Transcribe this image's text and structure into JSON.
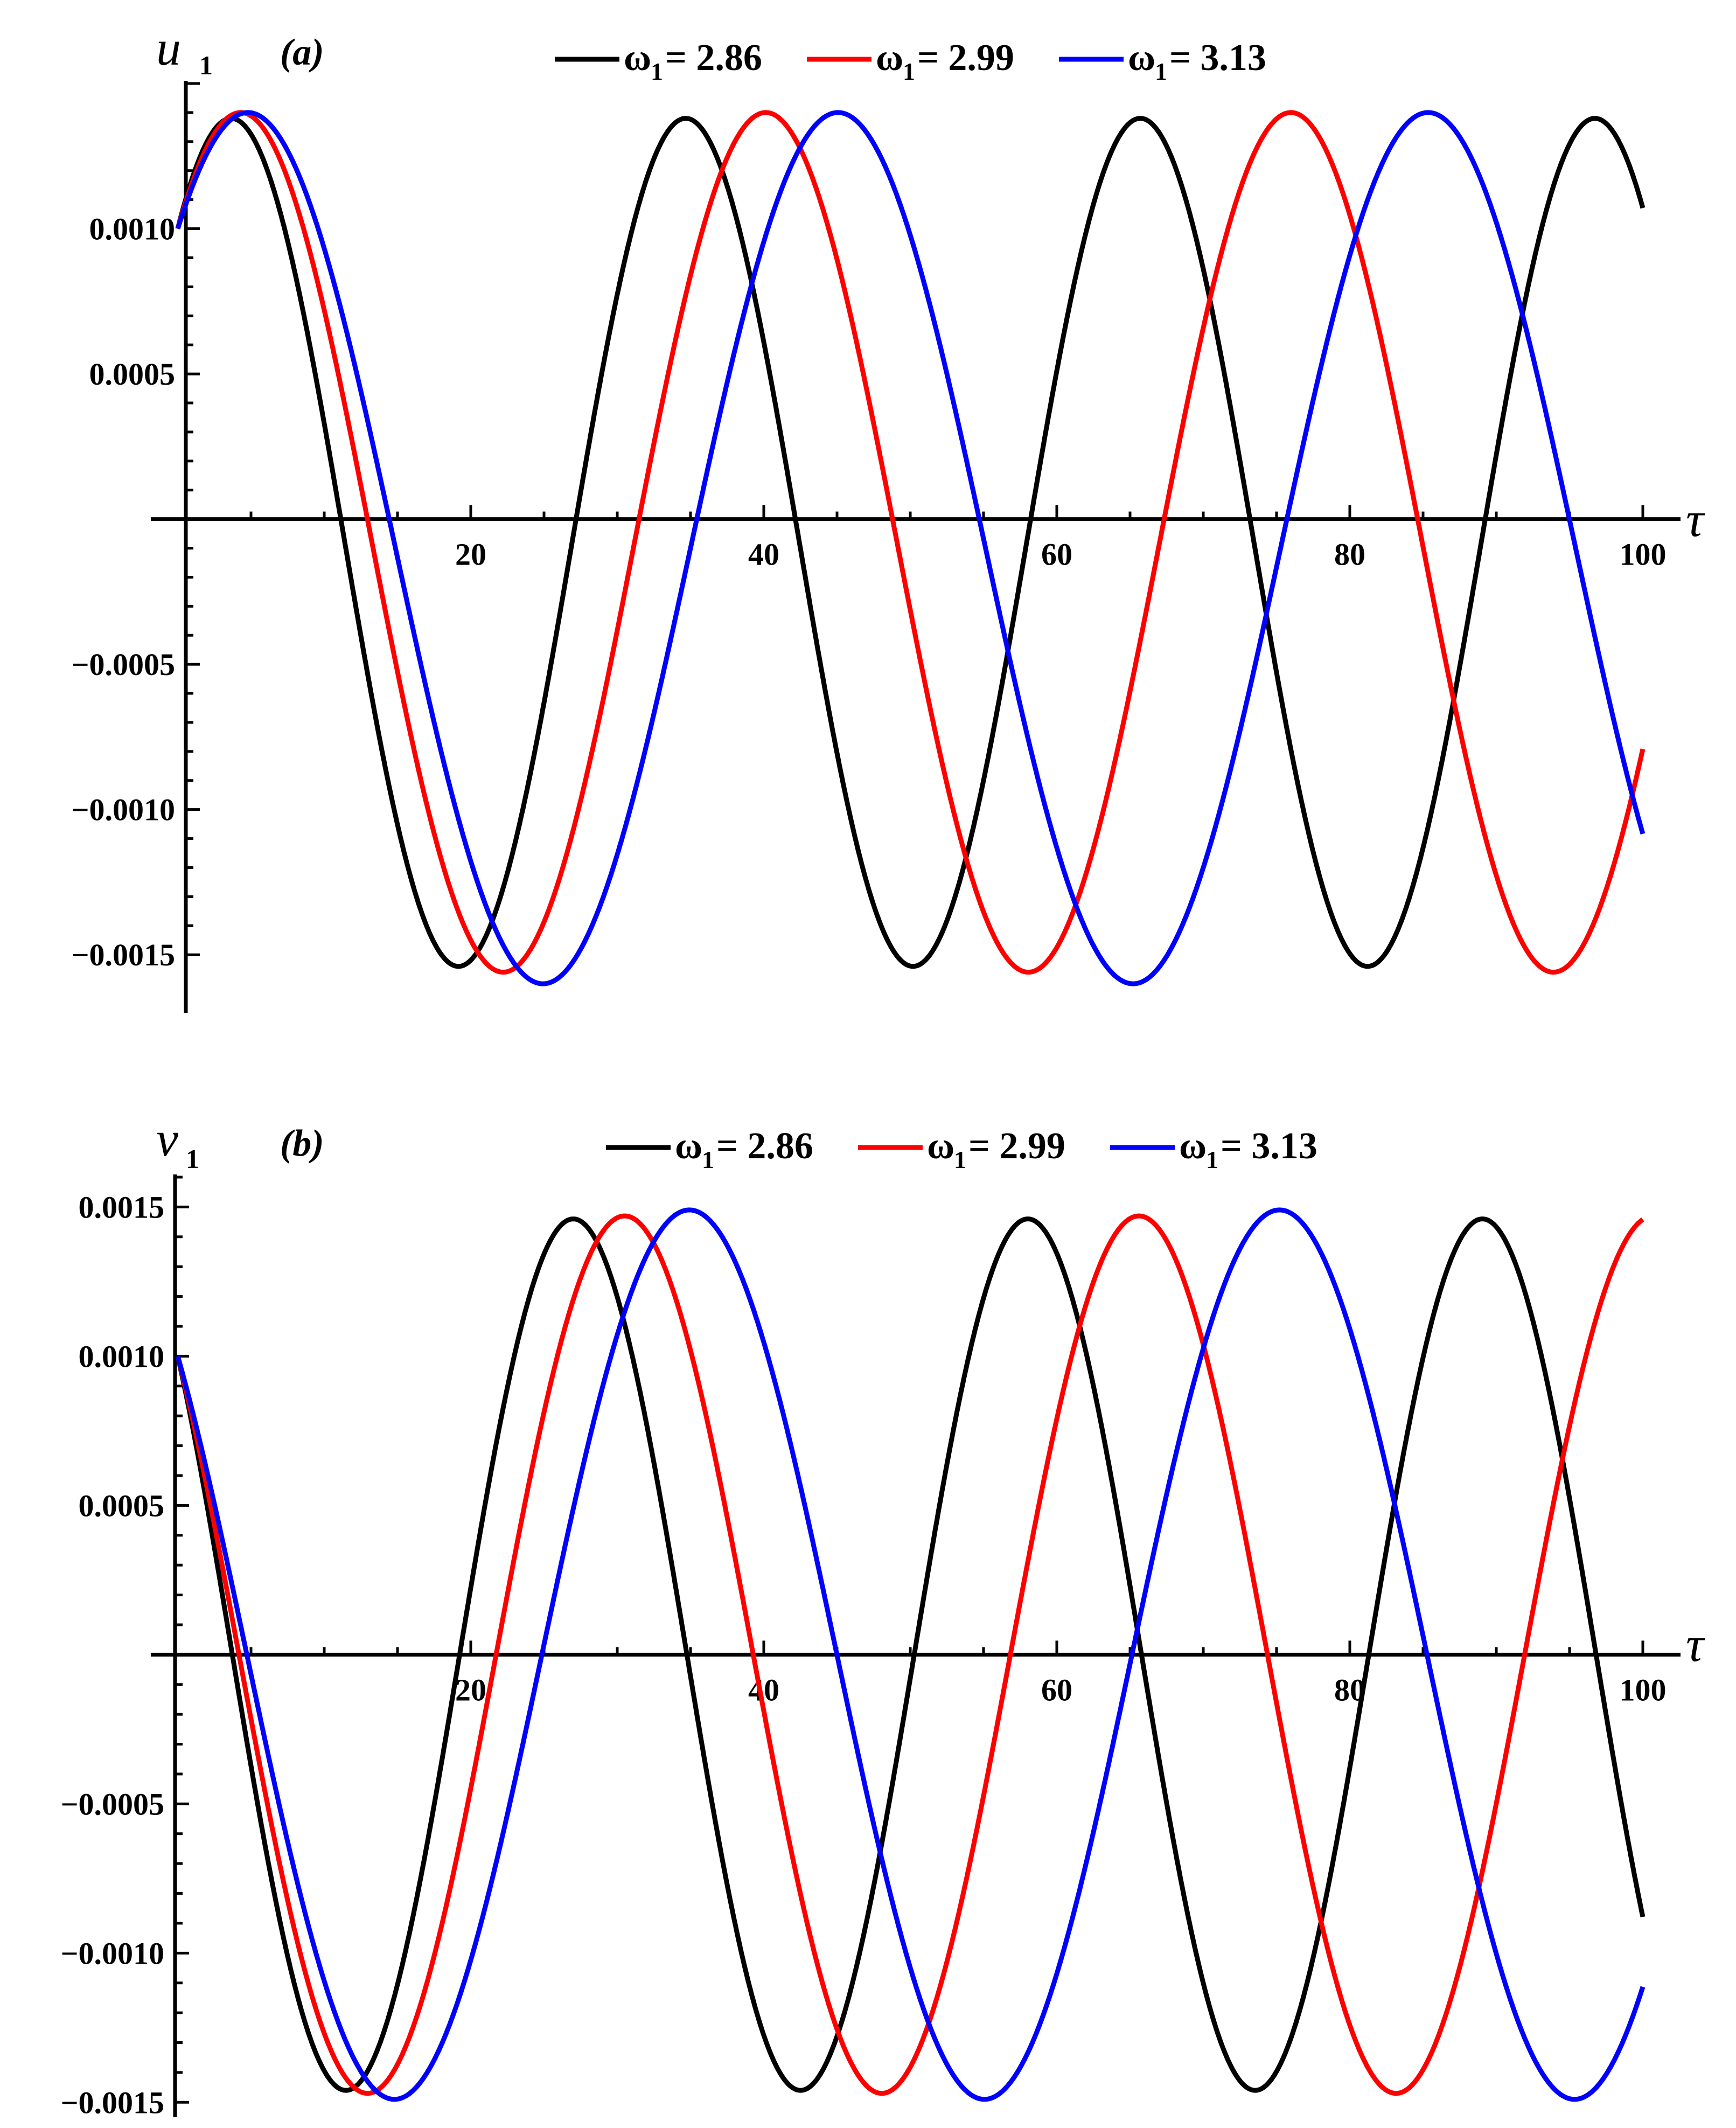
{
  "chart_data": [
    {
      "type": "line",
      "panel_label": "(a)",
      "ylabel": "u",
      "ylabel_subscript": "1",
      "xlabel": "τ",
      "xlim": [
        0,
        100
      ],
      "ylim": [
        -0.0017,
        0.0015
      ],
      "x_ticks": [
        "20",
        "40",
        "60",
        "80",
        "100"
      ],
      "y_ticks": [
        "0.0010",
        "0.0005",
        "−0.0005",
        "−0.0010",
        "−0.0015"
      ],
      "legend_placement": "top",
      "series": [
        {
          "name": "ω1 = 2.86",
          "color": "#000000",
          "omega": 0.2025,
          "offset": -8e-05,
          "amplitude": 0.00146,
          "initial": 0.001
        },
        {
          "name": "ω1 = 2.99",
          "color": "#ff0000",
          "omega": 0.1753,
          "offset": -8e-05,
          "amplitude": 0.00148,
          "initial": 0.001
        },
        {
          "name": "ω1 = 3.13",
          "color": "#0000ff",
          "omega": 0.156,
          "offset": -0.0001,
          "amplitude": 0.0015,
          "initial": 0.001
        }
      ],
      "legend": [
        {
          "symbol": "ω",
          "sub": "1",
          "text": "= 2.86",
          "color": "#000000"
        },
        {
          "symbol": "ω",
          "sub": "1",
          "text": "= 2.99",
          "color": "#ff0000"
        },
        {
          "symbol": "ω",
          "sub": "1",
          "text": "= 3.13",
          "color": "#0000ff"
        }
      ]
    },
    {
      "type": "line",
      "panel_label": "(b)",
      "ylabel": "v",
      "ylabel_subscript": "1",
      "xlabel": "τ",
      "xlim": [
        0,
        100
      ],
      "ylim": [
        -0.00155,
        0.0016
      ],
      "x_ticks": [
        "20",
        "40",
        "60",
        "80",
        "100"
      ],
      "y_ticks": [
        "0.0015",
        "0.0010",
        "0.0005",
        "−0.0005",
        "−0.0010",
        "−0.0015"
      ],
      "legend_placement": "top",
      "series": [
        {
          "name": "ω1 = 2.86",
          "color": "#000000",
          "omega": 0.2025,
          "amplitude": 0.00146
        },
        {
          "name": "ω1 = 2.99",
          "color": "#ff0000",
          "omega": 0.179,
          "amplitude": 0.00147
        },
        {
          "name": "ω1 = 3.13",
          "color": "#0000ff",
          "omega": 0.156,
          "amplitude": 0.00149
        }
      ],
      "legend": [
        {
          "symbol": "ω",
          "sub": "1",
          "text": "= 2.86",
          "color": "#000000"
        },
        {
          "symbol": "ω",
          "sub": "1",
          "text": "= 2.99",
          "color": "#ff0000"
        },
        {
          "symbol": "ω",
          "sub": "1",
          "text": "= 3.13",
          "color": "#0000ff"
        }
      ]
    }
  ]
}
